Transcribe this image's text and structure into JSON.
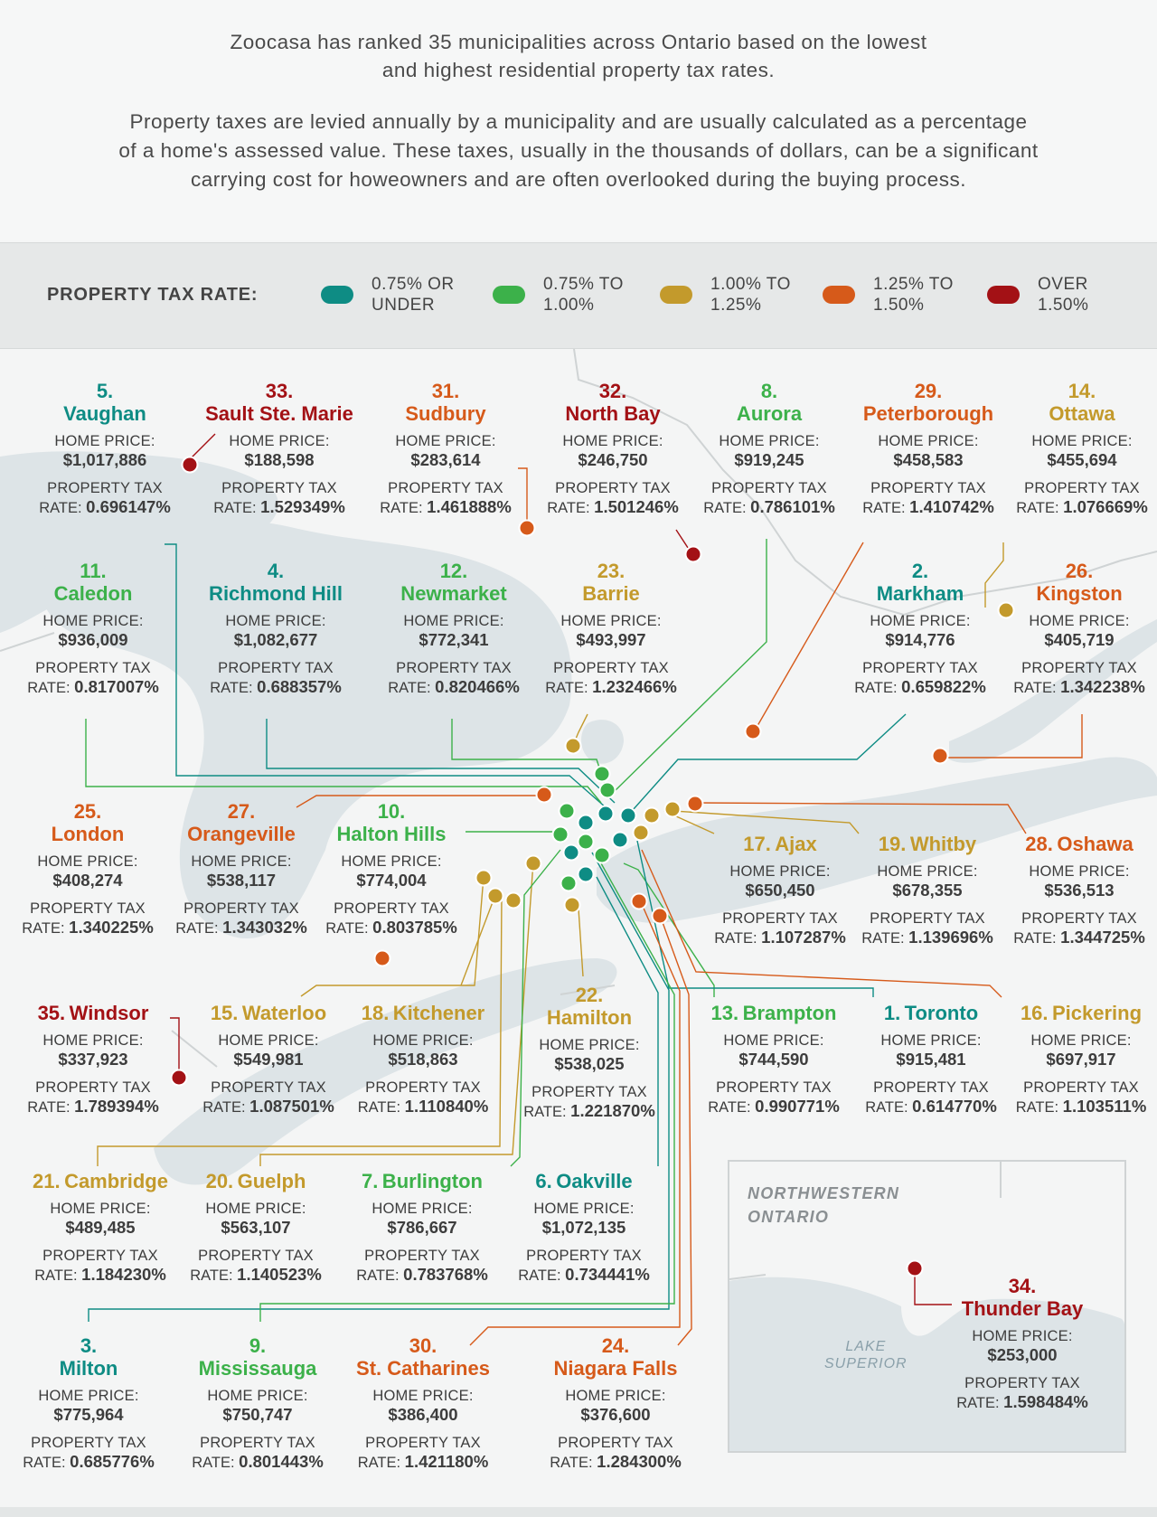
{
  "intro": {
    "line1": "Zoocasa has ranked 35 municipalities across Ontario based on the lowest",
    "line2": "and highest residential property tax rates.",
    "line3": "Property taxes are levied annually by a municipality and are usually calculated as a percentage",
    "line4": "of a home's assessed value. These taxes, usually in the thousands of dollars, can be a significant",
    "line5": "carrying cost for howeowners and are often overlooked during the buying process."
  },
  "legend": {
    "title": "PROPERTY TAX RATE:",
    "items": [
      {
        "line1": "0.75% OR",
        "line2": "UNDER",
        "color": "#0e8c84"
      },
      {
        "line1": "0.75% TO",
        "line2": "1.00%",
        "color": "#3cb14a"
      },
      {
        "line1": "1.00% TO",
        "line2": "1.25%",
        "color": "#c39a2c"
      },
      {
        "line1": "1.25% TO",
        "line2": "1.50%",
        "color": "#d65a1a"
      },
      {
        "line1": "OVER",
        "line2": "1.50%",
        "color": "#a31115"
      }
    ]
  },
  "labels": {
    "home_price": "HOME PRICE:",
    "tax_line1": "PROPERTY TAX",
    "rate_prefix": "RATE: "
  },
  "cities": [
    {
      "id": "vaughan",
      "rank": "5.",
      "name": "Vaughan",
      "price": "$1,017,886",
      "rate": "0.696147%",
      "cat": 0
    },
    {
      "id": "sault",
      "rank": "33.",
      "name": "Sault Ste. Marie",
      "price": "$188,598",
      "rate": "1.529349%",
      "cat": 4
    },
    {
      "id": "sudbury",
      "rank": "31.",
      "name": "Sudbury",
      "price": "$283,614",
      "rate": "1.461888%",
      "cat": 3
    },
    {
      "id": "northbay",
      "rank": "32.",
      "name": "North Bay",
      "price": "$246,750",
      "rate": "1.501246%",
      "cat": 4
    },
    {
      "id": "aurora",
      "rank": "8.",
      "name": "Aurora",
      "price": "$919,245",
      "rate": "0.786101%",
      "cat": 1
    },
    {
      "id": "peterborough",
      "rank": "29.",
      "name": "Peterborough",
      "price": "$458,583",
      "rate": "1.410742%",
      "cat": 3
    },
    {
      "id": "ottawa",
      "rank": "14.",
      "name": "Ottawa",
      "price": "$455,694",
      "rate": "1.076669%",
      "cat": 2
    },
    {
      "id": "caledon",
      "rank": "11.",
      "name": "Caledon",
      "price": "$936,009",
      "rate": "0.817007%",
      "cat": 1
    },
    {
      "id": "richmondhill",
      "rank": "4.",
      "name": "Richmond Hill",
      "price": "$1,082,677",
      "rate": "0.688357%",
      "cat": 0
    },
    {
      "id": "newmarket",
      "rank": "12.",
      "name": "Newmarket",
      "price": "$772,341",
      "rate": "0.820466%",
      "cat": 1
    },
    {
      "id": "barrie",
      "rank": "23.",
      "name": "Barrie",
      "price": "$493,997",
      "rate": "1.232466%",
      "cat": 2
    },
    {
      "id": "markham",
      "rank": "2.",
      "name": "Markham",
      "price": "$914,776",
      "rate": "0.659822%",
      "cat": 0
    },
    {
      "id": "kingston",
      "rank": "26.",
      "name": "Kingston",
      "price": "$405,719",
      "rate": "1.342238%",
      "cat": 3
    },
    {
      "id": "london",
      "rank": "25.",
      "name": "London",
      "price": "$408,274",
      "rate": "1.340225%",
      "cat": 3
    },
    {
      "id": "orangeville",
      "rank": "27.",
      "name": "Orangeville",
      "price": "$538,117",
      "rate": "1.343032%",
      "cat": 3
    },
    {
      "id": "haltonhills",
      "rank": "10.",
      "name": "Halton Hills",
      "price": "$774,004",
      "rate": "0.803785%",
      "cat": 1
    },
    {
      "id": "ajax",
      "rank": "17.",
      "name": "Ajax",
      "price": "$650,450",
      "rate": "1.107287%",
      "cat": 2
    },
    {
      "id": "whitby",
      "rank": "19.",
      "name": "Whitby",
      "price": "$678,355",
      "rate": "1.139696%",
      "cat": 2
    },
    {
      "id": "oshawa",
      "rank": "28.",
      "name": "Oshawa",
      "price": "$536,513",
      "rate": "1.344725%",
      "cat": 3
    },
    {
      "id": "windsor",
      "rank": "35.",
      "name": "Windsor",
      "price": "$337,923",
      "rate": "1.789394%",
      "cat": 4
    },
    {
      "id": "waterloo",
      "rank": "15.",
      "name": "Waterloo",
      "price": "$549,981",
      "rate": "1.087501%",
      "cat": 2
    },
    {
      "id": "kitchener",
      "rank": "18.",
      "name": "Kitchener",
      "price": "$518,863",
      "rate": "1.110840%",
      "cat": 2
    },
    {
      "id": "hamilton",
      "rank": "22.",
      "name": "Hamilton",
      "price": "$538,025",
      "rate": "1.221870%",
      "cat": 2
    },
    {
      "id": "brampton",
      "rank": "13.",
      "name": "Brampton",
      "price": "$744,590",
      "rate": "0.990771%",
      "cat": 1
    },
    {
      "id": "toronto",
      "rank": "1.",
      "name": "Toronto",
      "price": "$915,481",
      "rate": "0.614770%",
      "cat": 0
    },
    {
      "id": "pickering",
      "rank": "16.",
      "name": "Pickering",
      "price": "$697,917",
      "rate": "1.103511%",
      "cat": 2
    },
    {
      "id": "cambridge",
      "rank": "21.",
      "name": "Cambridge",
      "price": "$489,485",
      "rate": "1.184230%",
      "cat": 2
    },
    {
      "id": "guelph",
      "rank": "20.",
      "name": "Guelph",
      "price": "$563,107",
      "rate": "1.140523%",
      "cat": 2
    },
    {
      "id": "burlington",
      "rank": "7.",
      "name": "Burlington",
      "price": "$786,667",
      "rate": "0.783768%",
      "cat": 1
    },
    {
      "id": "oakville",
      "rank": "6.",
      "name": "Oakville",
      "price": "$1,072,135",
      "rate": "0.734441%",
      "cat": 0
    },
    {
      "id": "milton",
      "rank": "3.",
      "name": "Milton",
      "price": "$775,964",
      "rate": "0.685776%",
      "cat": 0
    },
    {
      "id": "mississauga",
      "rank": "9.",
      "name": "Mississauga",
      "price": "$750,747",
      "rate": "0.801443%",
      "cat": 1
    },
    {
      "id": "stcatharines",
      "rank": "30.",
      "name": "St. Catharines",
      "price": "$386,400",
      "rate": "1.421180%",
      "cat": 3
    },
    {
      "id": "niagarafalls",
      "rank": "24.",
      "name": "Niagara Falls",
      "price": "$376,600",
      "rate": "1.284300%",
      "cat": 3
    },
    {
      "id": "thunderbay",
      "rank": "34.",
      "name": "Thunder Bay",
      "price": "$253,000",
      "rate": "1.598484%",
      "cat": 4
    }
  ],
  "inset": {
    "title_line1": "NORTHWESTERN",
    "title_line2": "ONTARIO",
    "lake_line1": "LAKE",
    "lake_line2": "SUPERIOR"
  }
}
